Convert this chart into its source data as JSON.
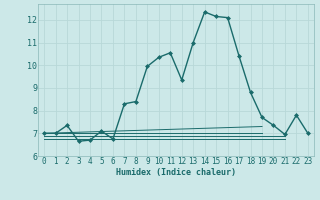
{
  "xlabel": "Humidex (Indice chaleur)",
  "background_color": "#cce8e8",
  "line_color": "#1a6b6b",
  "xlim": [
    -0.5,
    23.5
  ],
  "ylim": [
    6.0,
    12.7
  ],
  "yticks": [
    6,
    7,
    8,
    9,
    10,
    11,
    12
  ],
  "xticks": [
    0,
    1,
    2,
    3,
    4,
    5,
    6,
    7,
    8,
    9,
    10,
    11,
    12,
    13,
    14,
    15,
    16,
    17,
    18,
    19,
    20,
    21,
    22,
    23
  ],
  "series_main": {
    "x": [
      0,
      1,
      2,
      3,
      4,
      5,
      6,
      7,
      8,
      9,
      10,
      11,
      12,
      13,
      14,
      15,
      16,
      17,
      18,
      19,
      20,
      21,
      22,
      23
    ],
    "y": [
      7.0,
      7.0,
      7.35,
      6.65,
      6.7,
      7.1,
      6.75,
      8.3,
      8.4,
      9.95,
      10.35,
      10.55,
      9.35,
      11.0,
      12.35,
      12.15,
      12.1,
      10.4,
      8.8,
      7.7,
      7.35,
      6.95,
      7.8,
      7.0
    ],
    "color": "#1a6b6b",
    "lw": 1.0,
    "marker": "D",
    "markersize": 2.0
  },
  "series_flat": [
    {
      "x": [
        0,
        19
      ],
      "y": [
        7.0,
        7.3
      ],
      "color": "#1a6b6b",
      "lw": 0.7
    },
    {
      "x": [
        0,
        19
      ],
      "y": [
        7.0,
        7.0
      ],
      "color": "#1a6b6b",
      "lw": 0.7
    },
    {
      "x": [
        0,
        21
      ],
      "y": [
        6.9,
        6.9
      ],
      "color": "#1a6b6b",
      "lw": 0.7
    },
    {
      "x": [
        0,
        21
      ],
      "y": [
        6.75,
        6.75
      ],
      "color": "#1a6b6b",
      "lw": 0.7
    }
  ],
  "grid_color": "#b8d8d8",
  "grid_lw": 0.6,
  "font_size_ticks": 5.5,
  "font_size_xlabel": 6.0
}
